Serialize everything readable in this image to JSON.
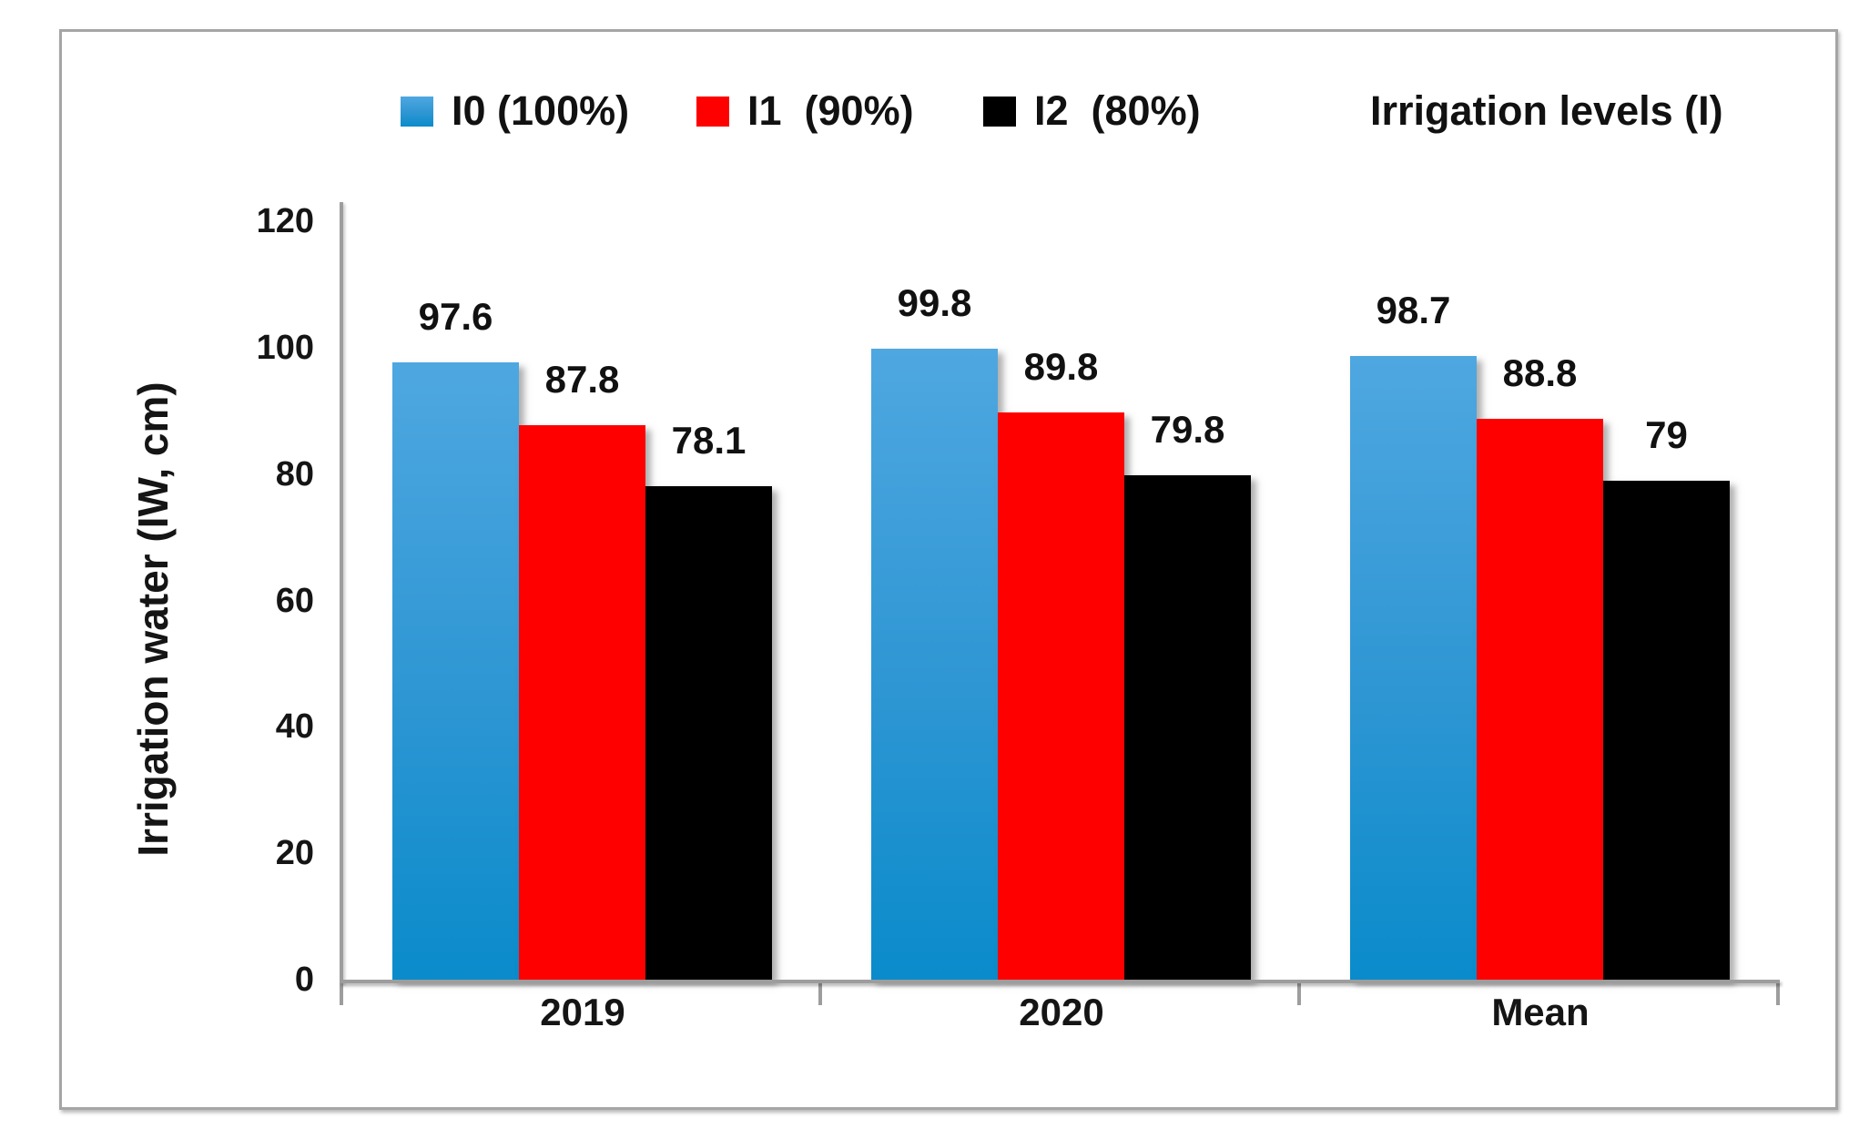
{
  "chart_data": {
    "type": "bar",
    "categories": [
      "2019",
      "2020",
      "Mean"
    ],
    "series": [
      {
        "name": "I0 (100%)",
        "color": "#2D96D3",
        "gradient_top": "#4FA7E0",
        "gradient_bottom": "#0A8BCB",
        "values": [
          97.6,
          99.8,
          98.7
        ]
      },
      {
        "name": "I1  (90%)",
        "color": "#FE0000",
        "values": [
          87.8,
          89.8,
          88.8
        ]
      },
      {
        "name": "I2  (80%)",
        "color": "#000000",
        "values": [
          78.1,
          79.8,
          79
        ]
      }
    ],
    "ylabel": "Irrigation water (IW, cm)",
    "xlabel": "",
    "ylim": [
      0,
      120
    ],
    "yticks": [
      0,
      20,
      40,
      60,
      80,
      100,
      120
    ],
    "legend_title": "Irrigation levels (I)",
    "legend_position": "top",
    "grid": false,
    "data_labels_shown": true,
    "axis_color": "#9d9d9d",
    "frame_color": "#a5a5a5",
    "background_color": "#ffffff"
  }
}
